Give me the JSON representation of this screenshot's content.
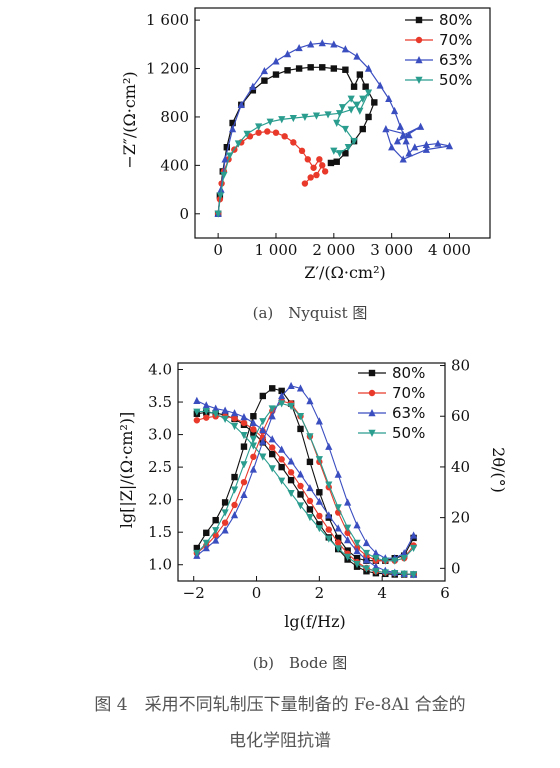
{
  "subcaptions": {
    "a": "(a)　Nyquist 图",
    "b": "(b)　Bode 图"
  },
  "figure_caption": {
    "line1": "图 4　采用不同轧制压下量制备的 Fe-8Al 合金的",
    "line2": "电化学阻抗谱"
  },
  "colors": {
    "80%": "#111111",
    "70%": "#e8392b",
    "63%": "#3b4ec0",
    "50%": "#2a9d8f"
  },
  "chart_data": [
    {
      "type": "scatter",
      "title": "Nyquist 图",
      "xlabel": "Z′/(Ω·cm²)",
      "ylabel": "−Z″/(Ω·cm²)",
      "xlim": [
        -400,
        4700
      ],
      "ylim": [
        -200,
        1700
      ],
      "xticks": [
        0,
        1000,
        2000,
        3000,
        4000
      ],
      "xtick_labels": [
        "0",
        "1 000",
        "2 000",
        "3 000",
        "4 000"
      ],
      "yticks": [
        0,
        400,
        800,
        1200,
        1600
      ],
      "ytick_labels": [
        "0",
        "400",
        "800",
        "1 200",
        "1 600"
      ],
      "legend_position": "top-right",
      "series": [
        {
          "name": "80%",
          "marker": "square",
          "color": "#111111",
          "x": [
            0,
            30,
            80,
            150,
            250,
            400,
            600,
            800,
            1000,
            1200,
            1400,
            1600,
            1800,
            2000,
            2200,
            2350,
            2450,
            2550,
            2700,
            2600,
            2500,
            2350,
            2200,
            2050,
            1950
          ],
          "y": [
            0,
            150,
            350,
            550,
            750,
            900,
            1020,
            1100,
            1150,
            1185,
            1200,
            1210,
            1210,
            1200,
            1190,
            1050,
            1150,
            1050,
            920,
            800,
            700,
            600,
            500,
            430,
            420
          ]
        },
        {
          "name": "70%",
          "marker": "circle",
          "color": "#e8392b",
          "x": [
            0,
            30,
            60,
            100,
            180,
            280,
            400,
            550,
            700,
            850,
            1000,
            1150,
            1300,
            1450,
            1550,
            1650,
            1750,
            1850,
            1800,
            1700,
            1600,
            1500
          ],
          "y": [
            0,
            120,
            250,
            350,
            450,
            530,
            590,
            640,
            670,
            680,
            670,
            640,
            590,
            520,
            450,
            380,
            450,
            350,
            400,
            320,
            300,
            250
          ]
        },
        {
          "name": "63%",
          "marker": "triangle-up",
          "color": "#3b4ec0",
          "x": [
            0,
            50,
            120,
            250,
            400,
            600,
            800,
            1000,
            1200,
            1400,
            1600,
            1800,
            2000,
            2200,
            2400,
            2600,
            2800,
            2950,
            3050,
            3150,
            3250,
            3300,
            3400,
            3600,
            3800,
            4000,
            3600,
            3200,
            3000,
            2900,
            3300,
            3100,
            3500,
            3200
          ],
          "y": [
            0,
            200,
            450,
            700,
            900,
            1050,
            1180,
            1260,
            1320,
            1370,
            1400,
            1410,
            1400,
            1360,
            1300,
            1200,
            1060,
            950,
            850,
            720,
            600,
            500,
            550,
            570,
            580,
            560,
            530,
            450,
            550,
            700,
            650,
            600,
            720,
            650
          ]
        },
        {
          "name": "50%",
          "marker": "triangle-down",
          "color": "#2a9d8f",
          "x": [
            0,
            40,
            100,
            200,
            350,
            500,
            700,
            900,
            1100,
            1300,
            1500,
            1700,
            1900,
            2100,
            2300,
            2400,
            2500,
            2600,
            2450,
            2300,
            2150,
            2050,
            2200,
            2350,
            2250,
            2100,
            2000
          ],
          "y": [
            0,
            150,
            320,
            480,
            580,
            660,
            720,
            760,
            780,
            790,
            800,
            810,
            820,
            830,
            860,
            900,
            950,
            1000,
            850,
            950,
            880,
            750,
            700,
            600,
            550,
            500,
            520
          ]
        }
      ]
    },
    {
      "type": "line",
      "title": "Bode 图",
      "xlabel": "lg(f/Hz)",
      "ylabel": "lg[|Z|/(Ω·cm²)]",
      "y2label": "2θ/(°)",
      "xlim": [
        -2.5,
        6
      ],
      "ylim": [
        0.75,
        4.1
      ],
      "y2lim": [
        -5,
        81
      ],
      "xticks": [
        -2,
        0,
        2,
        4,
        6
      ],
      "xtick_labels": [
        "−2",
        "0",
        "2",
        "4",
        "6"
      ],
      "yticks": [
        1.0,
        1.5,
        2.0,
        2.5,
        3.0,
        3.5,
        4.0
      ],
      "ytick_labels": [
        "1.0",
        "1.5",
        "2.0",
        "2.5",
        "3.0",
        "3.5",
        "4.0"
      ],
      "y2ticks": [
        0,
        20,
        40,
        60,
        80
      ],
      "y2tick_labels": [
        "0",
        "20",
        "40",
        "60",
        "80"
      ],
      "legend_position": "top-right",
      "x": [
        -1.9,
        -1.6,
        -1.3,
        -1.0,
        -0.7,
        -0.4,
        -0.1,
        0.2,
        0.5,
        0.8,
        1.1,
        1.4,
        1.7,
        2.0,
        2.3,
        2.6,
        2.9,
        3.2,
        3.5,
        3.8,
        4.1,
        4.4,
        4.7,
        5.0
      ],
      "series": [
        {
          "name": "80%",
          "marker": "square",
          "color": "#111111",
          "modulus": [
            3.32,
            3.34,
            3.33,
            3.3,
            3.24,
            3.15,
            3.03,
            2.88,
            2.7,
            2.5,
            2.3,
            2.08,
            1.85,
            1.62,
            1.42,
            1.24,
            1.08,
            0.97,
            0.9,
            0.87,
            0.86,
            0.85,
            0.85,
            0.85
          ],
          "phase": [
            8,
            14,
            19,
            26,
            36,
            48,
            60,
            68,
            71,
            70,
            65,
            55,
            42,
            30,
            20,
            12,
            7,
            4,
            3,
            3,
            3,
            4,
            5,
            12
          ]
        },
        {
          "name": "70%",
          "marker": "circle",
          "color": "#e8392b",
          "modulus": [
            3.22,
            3.26,
            3.28,
            3.28,
            3.25,
            3.18,
            3.08,
            2.95,
            2.8,
            2.62,
            2.42,
            2.21,
            1.98,
            1.75,
            1.54,
            1.34,
            1.17,
            1.04,
            0.95,
            0.9,
            0.88,
            0.87,
            0.86,
            0.85
          ],
          "phase": [
            6,
            9,
            13,
            18,
            25,
            34,
            44,
            54,
            62,
            66,
            65,
            60,
            52,
            42,
            32,
            22,
            14,
            8,
            5,
            3,
            3,
            3,
            4,
            9
          ]
        },
        {
          "name": "63%",
          "marker": "triangle-up",
          "color": "#3b4ec0",
          "modulus": [
            3.52,
            3.45,
            3.4,
            3.37,
            3.33,
            3.27,
            3.18,
            3.07,
            2.93,
            2.77,
            2.59,
            2.39,
            2.18,
            1.97,
            1.76,
            1.56,
            1.38,
            1.21,
            1.07,
            0.97,
            0.91,
            0.88,
            0.86,
            0.85
          ],
          "phase": [
            5,
            8,
            11,
            15,
            21,
            29,
            39,
            50,
            60,
            68,
            72,
            71,
            66,
            58,
            48,
            37,
            26,
            17,
            10,
            6,
            4,
            4,
            6,
            13
          ]
        },
        {
          "name": "50%",
          "marker": "triangle-down",
          "color": "#2a9d8f",
          "modulus": [
            3.35,
            3.36,
            3.32,
            3.24,
            3.13,
            2.99,
            2.83,
            2.66,
            2.48,
            2.29,
            2.1,
            1.91,
            1.73,
            1.56,
            1.4,
            1.25,
            1.12,
            1.01,
            0.94,
            0.9,
            0.88,
            0.87,
            0.86,
            0.85
          ],
          "phase": [
            6,
            10,
            15,
            22,
            31,
            41,
            51,
            58,
            63,
            65,
            64,
            60,
            52,
            43,
            33,
            24,
            16,
            10,
            6,
            4,
            3,
            3,
            4,
            8
          ]
        }
      ]
    }
  ]
}
